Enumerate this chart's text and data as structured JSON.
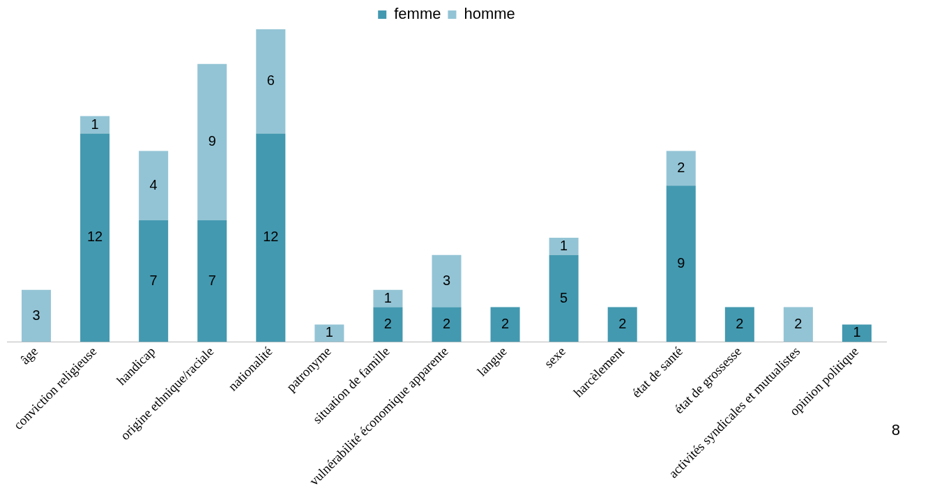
{
  "chart_data": {
    "type": "bar",
    "stacked": true,
    "data_labels": true,
    "legend": "top",
    "grid": false,
    "tick_labels": "x",
    "categories": [
      "âge",
      "conviction religieuse",
      "handicap",
      "origine ethnique/raciale",
      "nationalité",
      "patronyme",
      "situation de famille",
      "vulnérabilité économique apparente",
      "langue",
      "sexe",
      "harcèlement",
      "état de santé",
      "état de grossesse",
      "activités syndicales et mutualistes",
      "opinion politique"
    ],
    "series": [
      {
        "name": "femme",
        "color": "#4399b0",
        "values": [
          null,
          12,
          7,
          7,
          12,
          null,
          2,
          2,
          2,
          5,
          2,
          9,
          2,
          null,
          1
        ]
      },
      {
        "name": "homme",
        "color": "#93c4d5",
        "values": [
          3,
          1,
          4,
          9,
          6,
          1,
          1,
          3,
          null,
          1,
          null,
          2,
          null,
          2,
          null
        ]
      }
    ],
    "annotations": [
      "8"
    ]
  }
}
